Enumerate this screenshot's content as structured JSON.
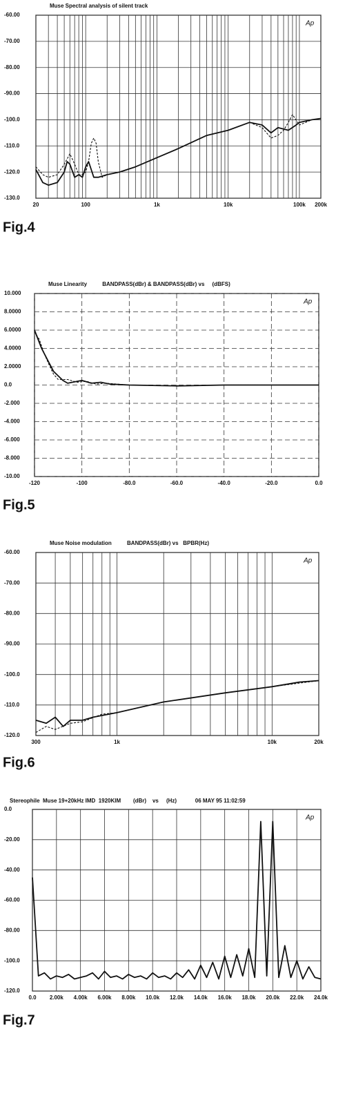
{
  "chart_data": [
    {
      "type": "line",
      "title": "Muse Spectral analysis of silent track",
      "caption": "Fig.4",
      "logo": "Ap",
      "log_x": true,
      "grid": true,
      "xlim": [
        20,
        200000
      ],
      "xticks": [
        20,
        100,
        {
          "value": 1000,
          "label": "1k"
        },
        {
          "value": 10000,
          "label": "10k"
        },
        {
          "value": 100000,
          "label": "100k"
        },
        {
          "value": 200000,
          "label": "200k"
        }
      ],
      "xminor": [
        30,
        40,
        50,
        60,
        70,
        80,
        90,
        200,
        300,
        400,
        500,
        600,
        700,
        800,
        900,
        2000,
        3000,
        4000,
        5000,
        6000,
        7000,
        8000,
        9000,
        20000,
        30000,
        40000,
        50000,
        60000,
        70000,
        80000,
        90000
      ],
      "ylim": [
        -130,
        -60
      ],
      "yticks": [
        {
          "value": -60,
          "label": "-60.00"
        },
        {
          "value": -70,
          "label": "-70.00"
        },
        {
          "value": -80,
          "label": "-80.00"
        },
        {
          "value": -90,
          "label": "-90.00"
        },
        {
          "value": -100,
          "label": "-100.0"
        },
        {
          "value": -110,
          "label": "-110.0"
        },
        {
          "value": -120,
          "label": "-120.0"
        },
        {
          "value": -130,
          "label": "-130.0"
        }
      ],
      "series": [
        {
          "color": "#111",
          "dashed": false,
          "x": [
            20,
            25,
            30,
            40,
            50,
            55,
            60,
            70,
            80,
            90,
            100,
            110,
            130,
            150,
            200,
            300,
            500,
            1000,
            2000,
            5000,
            10000,
            20000,
            30000,
            40000,
            50000,
            70000,
            90000,
            100000,
            150000,
            200000
          ],
          "values": [
            -119,
            -124,
            -125,
            -124,
            -120,
            -116,
            -117,
            -122,
            -121,
            -122,
            -118,
            -116,
            -122,
            -122,
            -121,
            -120,
            -118,
            -114.5,
            -111,
            -106,
            -104,
            -101,
            -102,
            -105,
            -103,
            -104,
            -102,
            -101,
            -100,
            -99.5
          ]
        },
        {
          "color": "#111",
          "dashed": true,
          "x": [
            20,
            25,
            30,
            40,
            50,
            60,
            70,
            80,
            90,
            100,
            110,
            120,
            130,
            140,
            150,
            170,
            200,
            300,
            500,
            1000,
            2000,
            5000,
            10000,
            20000,
            30000,
            40000,
            50000,
            60000,
            70000,
            80000,
            100000,
            150000,
            200000
          ],
          "values": [
            -118,
            -121,
            -122,
            -121,
            -117,
            -113,
            -117,
            -121,
            -121,
            -120,
            -116,
            -109,
            -107,
            -109,
            -116,
            -122,
            -121,
            -120,
            -118,
            -114.5,
            -111,
            -106,
            -104,
            -101,
            -103,
            -107,
            -106,
            -104,
            -101,
            -98,
            -102,
            -100,
            -99.5
          ]
        }
      ]
    },
    {
      "type": "line",
      "title": "Muse Linearity          BANDPASS(dBr) & BANDPASS(dBr) vs     (dBFS)",
      "caption": "Fig.5",
      "logo": "Ap",
      "log_x": false,
      "grid": true,
      "grid_dashed": true,
      "xlim": [
        -120,
        0
      ],
      "xticks": [
        -120,
        -100,
        {
          "value": -80,
          "label": "-80.0"
        },
        {
          "value": -60,
          "label": "-60.0"
        },
        {
          "value": -40,
          "label": "-40.0"
        },
        {
          "value": -20,
          "label": "-20.0"
        },
        {
          "value": 0,
          "label": "0.0"
        }
      ],
      "ylim": [
        -10,
        10
      ],
      "yticks": [
        {
          "value": 10,
          "label": "10.000"
        },
        {
          "value": 8,
          "label": "8.0000"
        },
        {
          "value": 6,
          "label": "6.0000"
        },
        {
          "value": 4,
          "label": "4.0000"
        },
        {
          "value": 2,
          "label": "2.0000"
        },
        {
          "value": 0,
          "label": "0.0"
        },
        {
          "value": -2,
          "label": "-2.000"
        },
        {
          "value": -4,
          "label": "-4.000"
        },
        {
          "value": -6,
          "label": "-6.000"
        },
        {
          "value": -8,
          "label": "-8.000"
        },
        {
          "value": -10,
          "label": "-10.00"
        }
      ],
      "series": [
        {
          "color": "#111",
          "dashed": false,
          "x": [
            -120,
            -117,
            -114,
            -112,
            -108,
            -106,
            -104,
            -100,
            -96,
            -92,
            -88,
            -80,
            -60,
            -40,
            -20,
            0
          ],
          "values": [
            6,
            4,
            2.5,
            1.5,
            0.5,
            0.2,
            0.3,
            0.5,
            0.2,
            0.3,
            0.1,
            0,
            -0.1,
            0,
            0,
            0
          ]
        },
        {
          "color": "#111",
          "dashed": true,
          "x": [
            -120,
            -118,
            -116,
            -114,
            -112,
            -110,
            -106,
            -102,
            -98,
            -94,
            -90,
            -80,
            -60,
            -40,
            0
          ],
          "values": [
            5.8,
            5,
            3.5,
            2.3,
            1.2,
            0.6,
            0.6,
            0.3,
            0.4,
            0.1,
            0.2,
            0,
            -0.1,
            0,
            0
          ]
        }
      ]
    },
    {
      "type": "line",
      "title": "Muse Noise modulation          BANDPASS(dBr) vs   BPBR(Hz)",
      "caption": "Fig.6",
      "logo": "Ap",
      "log_x": true,
      "grid": true,
      "xlim": [
        300,
        20000
      ],
      "xticks": [
        300,
        {
          "value": 1000,
          "label": "1k"
        },
        {
          "value": 10000,
          "label": "10k"
        },
        {
          "value": 20000,
          "label": "20k"
        }
      ],
      "xminor": [
        400,
        500,
        600,
        700,
        800,
        900,
        2000,
        3000,
        4000,
        5000,
        6000,
        7000,
        8000,
        9000
      ],
      "ylim": [
        -120,
        -60
      ],
      "yticks": [
        {
          "value": -60,
          "label": "-60.00"
        },
        {
          "value": -70,
          "label": "-70.00"
        },
        {
          "value": -80,
          "label": "-80.00"
        },
        {
          "value": -90,
          "label": "-90.00"
        },
        {
          "value": -100,
          "label": "-100.0"
        },
        {
          "value": -110,
          "label": "-110.0"
        },
        {
          "value": -120,
          "label": "-120.0"
        }
      ],
      "series": [
        {
          "color": "#111",
          "dashed": false,
          "x": [
            300,
            350,
            400,
            450,
            500,
            600,
            700,
            1000,
            2000,
            5000,
            10000,
            15000,
            20000
          ],
          "values": [
            -115,
            -116,
            -114,
            -117,
            -115,
            -115,
            -114,
            -112.5,
            -109,
            -106,
            -104,
            -102.5,
            -102
          ]
        },
        {
          "color": "#111",
          "dashed": true,
          "x": [
            300,
            350,
            400,
            500,
            600,
            800,
            1000,
            2000,
            5000,
            10000,
            20000
          ],
          "values": [
            -119,
            -117,
            -118,
            -116,
            -115.5,
            -113,
            -112.5,
            -109,
            -106,
            -104,
            -102
          ]
        }
      ]
    },
    {
      "type": "line",
      "title": "Stereophile  Muse 19+20kHz IMD  1920KIM        (dBr)    vs     (Hz)            06 MAY 95 11:02:59",
      "caption": "Fig.7",
      "logo": "Ap",
      "log_x": false,
      "grid": true,
      "xlim": [
        0,
        24000
      ],
      "xticks": [
        {
          "value": 0,
          "label": "0.0"
        },
        {
          "value": 2000,
          "label": "2.00k"
        },
        {
          "value": 4000,
          "label": "4.00k"
        },
        {
          "value": 6000,
          "label": "6.00k"
        },
        {
          "value": 8000,
          "label": "8.00k"
        },
        {
          "value": 10000,
          "label": "10.0k"
        },
        {
          "value": 12000,
          "label": "12.0k"
        },
        {
          "value": 14000,
          "label": "14.0k"
        },
        {
          "value": 16000,
          "label": "16.0k"
        },
        {
          "value": 18000,
          "label": "18.0k"
        },
        {
          "value": 20000,
          "label": "20.0k"
        },
        {
          "value": 22000,
          "label": "22.0k"
        },
        {
          "value": 24000,
          "label": "24.0k"
        }
      ],
      "ylim": [
        -120,
        0
      ],
      "yticks": [
        {
          "value": 0,
          "label": "0.0"
        },
        {
          "value": -20,
          "label": "-20.00"
        },
        {
          "value": -40,
          "label": "-40.00"
        },
        {
          "value": -60,
          "label": "-60.00"
        },
        {
          "value": -80,
          "label": "-80.00"
        },
        {
          "value": -100,
          "label": "-100.0"
        },
        {
          "value": -120,
          "label": "-120.0"
        }
      ],
      "series": [
        {
          "color": "#111",
          "dashed": false,
          "x": [
            0,
            500,
            1000,
            1500,
            2000,
            2500,
            3000,
            3500,
            4000,
            4500,
            5000,
            5500,
            6000,
            6500,
            7000,
            7500,
            8000,
            8500,
            9000,
            9500,
            10000,
            10500,
            11000,
            11500,
            12000,
            12500,
            13000,
            13500,
            14000,
            14500,
            15000,
            15500,
            16000,
            16500,
            17000,
            17500,
            18000,
            18500,
            19000,
            19500,
            20000,
            20500,
            21000,
            21500,
            22000,
            22500,
            23000,
            23500,
            24000
          ],
          "values": [
            -45,
            -110,
            -108,
            -112,
            -110,
            -111,
            -109,
            -112,
            -111,
            -110,
            -108,
            -112,
            -107,
            -111,
            -110,
            -112,
            -109,
            -111,
            -110,
            -112,
            -108,
            -111,
            -110,
            -112,
            -108,
            -111,
            -106,
            -112,
            -103,
            -111,
            -101,
            -112,
            -97,
            -111,
            -96,
            -110,
            -92,
            -111,
            -8,
            -110,
            -8,
            -111,
            -90,
            -111,
            -100,
            -112,
            -104,
            -111,
            -112
          ]
        }
      ]
    }
  ]
}
